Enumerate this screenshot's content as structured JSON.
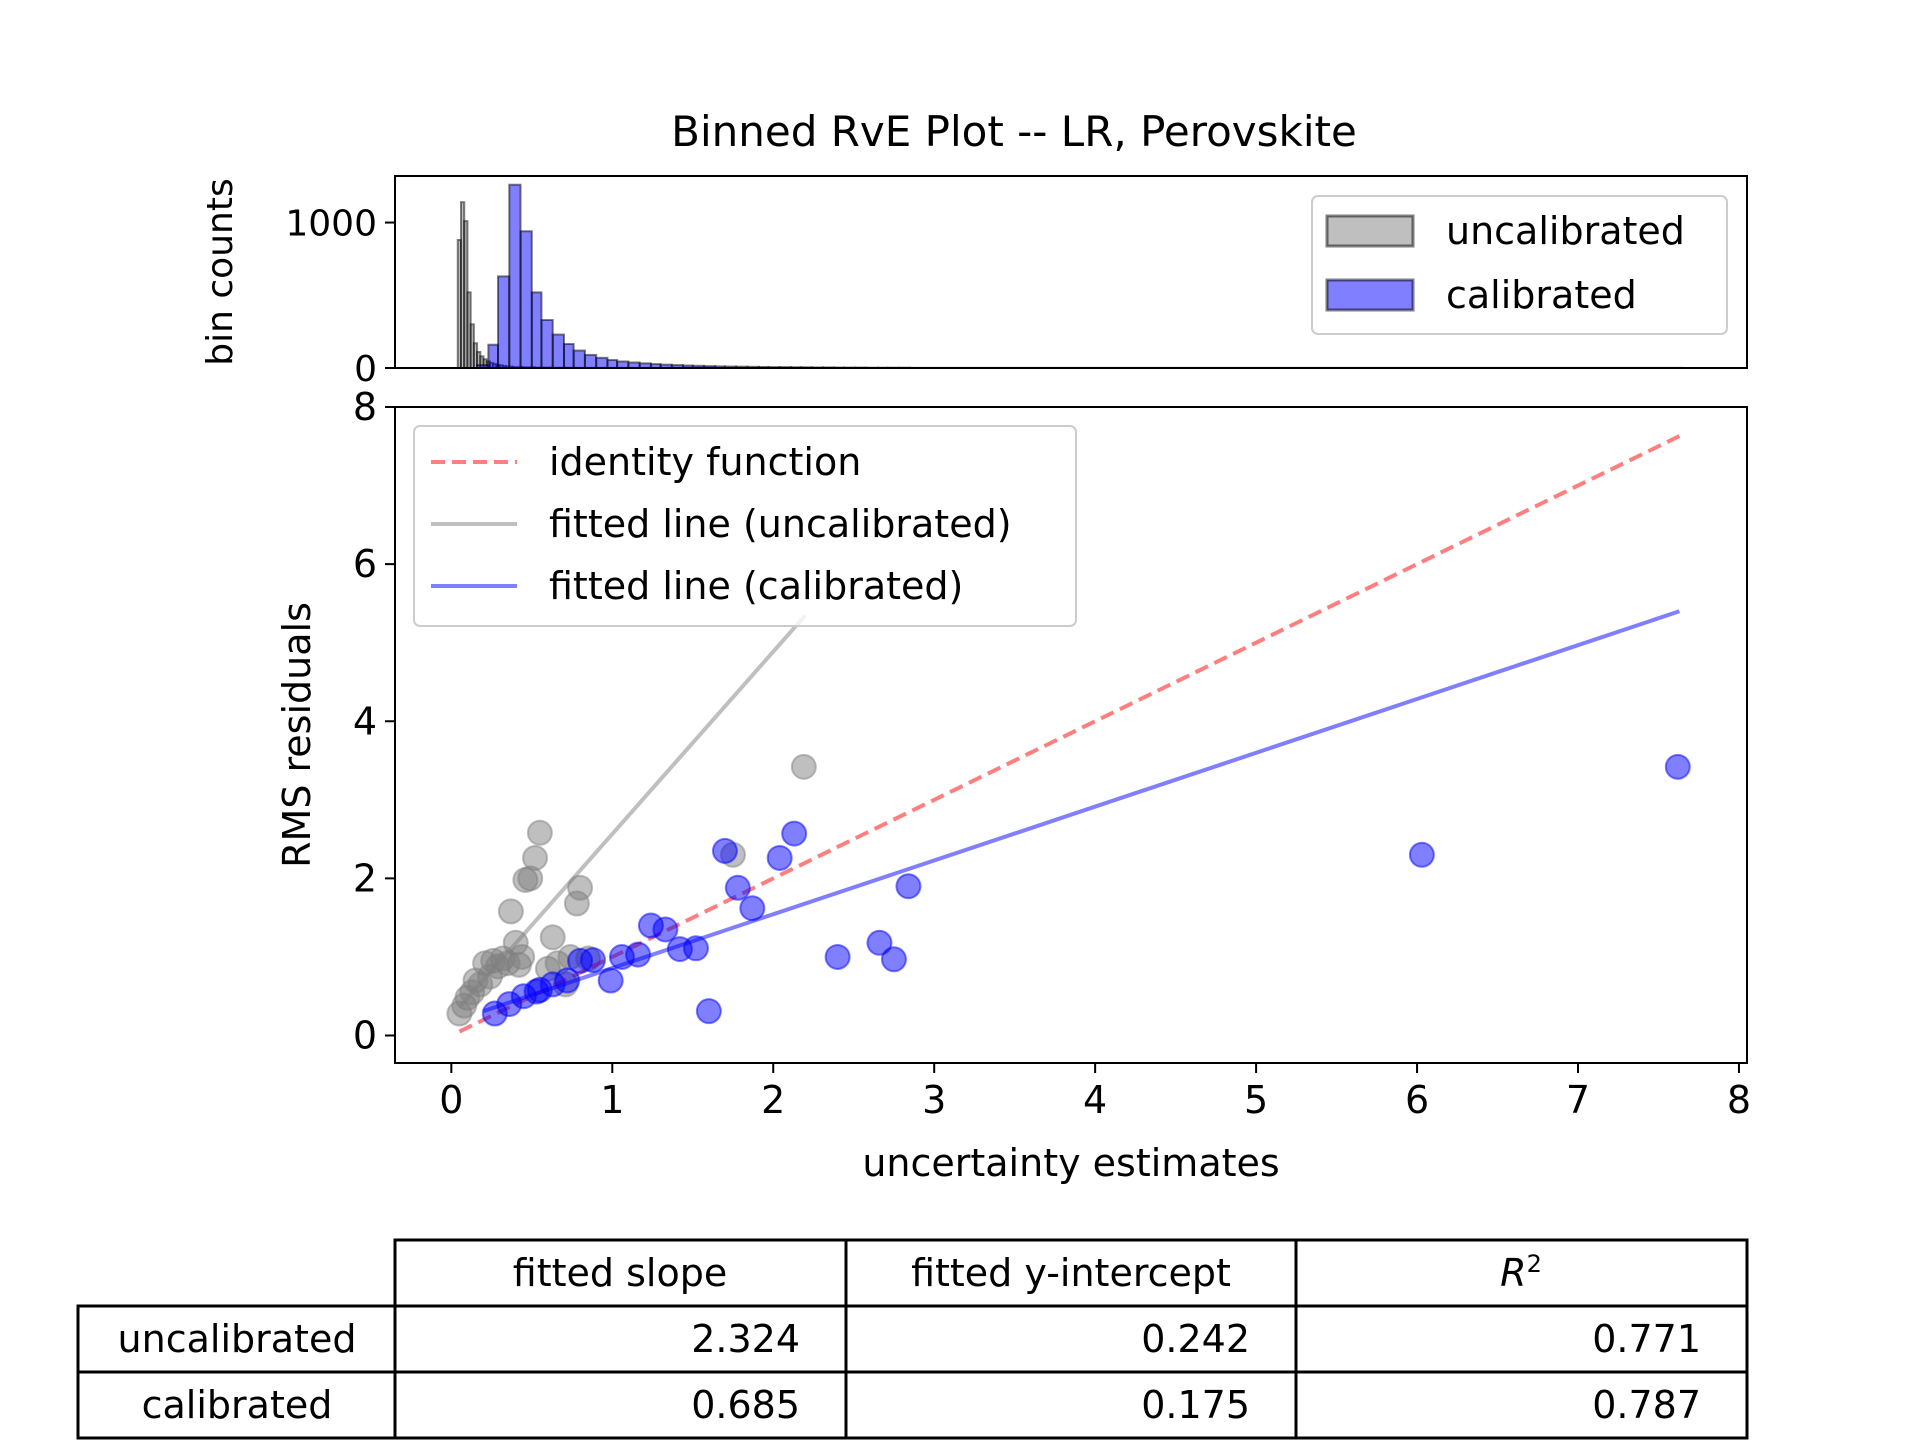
{
  "title": "Binned RvE Plot -- LR, Perovskite",
  "chart_data": [
    {
      "type": "histogram",
      "name": "bin-counts-panel",
      "ylabel": "bin counts",
      "yticks": [
        0,
        1000
      ],
      "ylim": [
        0,
        1320
      ],
      "xlim": [
        -0.35,
        8.05
      ],
      "legend_position": "top-right",
      "legend": [
        {
          "label": "uncalibrated",
          "color": "#808080"
        },
        {
          "label": "calibrated",
          "color": "#0000ff"
        }
      ],
      "series": [
        {
          "name": "uncalibrated",
          "color": "#808080",
          "bins": [
            {
              "x0": 0.04,
              "x1": 0.06,
              "count": 880
            },
            {
              "x0": 0.06,
              "x1": 0.08,
              "count": 1140
            },
            {
              "x0": 0.08,
              "x1": 0.1,
              "count": 1010
            },
            {
              "x0": 0.1,
              "x1": 0.12,
              "count": 520
            },
            {
              "x0": 0.12,
              "x1": 0.14,
              "count": 300
            },
            {
              "x0": 0.14,
              "x1": 0.16,
              "count": 170
            },
            {
              "x0": 0.16,
              "x1": 0.18,
              "count": 110
            },
            {
              "x0": 0.18,
              "x1": 0.2,
              "count": 80
            },
            {
              "x0": 0.2,
              "x1": 0.22,
              "count": 60
            },
            {
              "x0": 0.22,
              "x1": 0.24,
              "count": 45
            },
            {
              "x0": 0.24,
              "x1": 0.26,
              "count": 35
            },
            {
              "x0": 0.26,
              "x1": 0.28,
              "count": 28
            },
            {
              "x0": 0.28,
              "x1": 0.3,
              "count": 22
            },
            {
              "x0": 0.3,
              "x1": 0.32,
              "count": 18
            },
            {
              "x0": 0.32,
              "x1": 0.34,
              "count": 14
            },
            {
              "x0": 0.34,
              "x1": 0.38,
              "count": 10
            },
            {
              "x0": 0.38,
              "x1": 0.44,
              "count": 7
            },
            {
              "x0": 0.44,
              "x1": 0.52,
              "count": 5
            },
            {
              "x0": 0.52,
              "x1": 0.62,
              "count": 3
            },
            {
              "x0": 0.62,
              "x1": 0.76,
              "count": 2
            },
            {
              "x0": 0.76,
              "x1": 0.95,
              "count": 1
            },
            {
              "x0": 0.95,
              "x1": 2.2,
              "count": 1
            }
          ]
        },
        {
          "name": "calibrated",
          "color": "#0000ff",
          "bins": [
            {
              "x0": 0.16,
              "x1": 0.23,
              "count": 20
            },
            {
              "x0": 0.23,
              "x1": 0.29,
              "count": 160
            },
            {
              "x0": 0.29,
              "x1": 0.36,
              "count": 630
            },
            {
              "x0": 0.36,
              "x1": 0.43,
              "count": 1260
            },
            {
              "x0": 0.43,
              "x1": 0.5,
              "count": 940
            },
            {
              "x0": 0.5,
              "x1": 0.56,
              "count": 520
            },
            {
              "x0": 0.56,
              "x1": 0.63,
              "count": 330
            },
            {
              "x0": 0.63,
              "x1": 0.7,
              "count": 230
            },
            {
              "x0": 0.7,
              "x1": 0.76,
              "count": 165
            },
            {
              "x0": 0.76,
              "x1": 0.83,
              "count": 120
            },
            {
              "x0": 0.83,
              "x1": 0.9,
              "count": 90
            },
            {
              "x0": 0.9,
              "x1": 0.97,
              "count": 70
            },
            {
              "x0": 0.97,
              "x1": 1.03,
              "count": 55
            },
            {
              "x0": 1.03,
              "x1": 1.1,
              "count": 45
            },
            {
              "x0": 1.1,
              "x1": 1.17,
              "count": 38
            },
            {
              "x0": 1.17,
              "x1": 1.24,
              "count": 32
            },
            {
              "x0": 1.24,
              "x1": 1.3,
              "count": 27
            },
            {
              "x0": 1.3,
              "x1": 1.37,
              "count": 23
            },
            {
              "x0": 1.37,
              "x1": 1.44,
              "count": 20
            },
            {
              "x0": 1.44,
              "x1": 1.5,
              "count": 17
            },
            {
              "x0": 1.5,
              "x1": 1.57,
              "count": 15
            },
            {
              "x0": 1.57,
              "x1": 1.64,
              "count": 13
            },
            {
              "x0": 1.64,
              "x1": 1.7,
              "count": 11
            },
            {
              "x0": 1.7,
              "x1": 1.77,
              "count": 10
            },
            {
              "x0": 1.77,
              "x1": 1.84,
              "count": 9
            },
            {
              "x0": 1.84,
              "x1": 1.91,
              "count": 8
            },
            {
              "x0": 1.91,
              "x1": 1.97,
              "count": 7
            },
            {
              "x0": 1.97,
              "x1": 2.04,
              "count": 6
            },
            {
              "x0": 2.04,
              "x1": 2.11,
              "count": 6
            },
            {
              "x0": 2.11,
              "x1": 2.17,
              "count": 5
            },
            {
              "x0": 2.17,
              "x1": 2.24,
              "count": 5
            },
            {
              "x0": 2.24,
              "x1": 2.31,
              "count": 4
            },
            {
              "x0": 2.31,
              "x1": 2.38,
              "count": 4
            },
            {
              "x0": 2.38,
              "x1": 2.44,
              "count": 3
            },
            {
              "x0": 2.44,
              "x1": 2.51,
              "count": 3
            },
            {
              "x0": 2.51,
              "x1": 2.58,
              "count": 3
            },
            {
              "x0": 2.58,
              "x1": 2.65,
              "count": 2
            },
            {
              "x0": 2.65,
              "x1": 2.71,
              "count": 2
            },
            {
              "x0": 2.71,
              "x1": 2.78,
              "count": 2
            },
            {
              "x0": 2.78,
              "x1": 2.85,
              "count": 2
            },
            {
              "x0": 2.85,
              "x1": 7.65,
              "count": 1
            }
          ]
        }
      ]
    },
    {
      "type": "scatter",
      "name": "rve-scatter-panel",
      "xlabel": "uncertainty estimates",
      "ylabel": "RMS residuals",
      "xlim": [
        -0.35,
        8.05
      ],
      "ylim": [
        -0.35,
        8.0
      ],
      "xticks": [
        0,
        1,
        2,
        3,
        4,
        5,
        6,
        7,
        8
      ],
      "yticks": [
        0,
        2,
        4,
        6,
        8
      ],
      "legend_position": "top-left",
      "legend": [
        {
          "label": "identity function",
          "color": "#ff0000",
          "style": "dashed"
        },
        {
          "label": "fitted line (uncalibrated)",
          "color": "#808080",
          "style": "solid"
        },
        {
          "label": "fitted line (calibrated)",
          "color": "#0000ff",
          "style": "solid"
        }
      ],
      "lines": [
        {
          "name": "identity function",
          "color": "#ff0000",
          "dashed": true,
          "x": [
            0.05,
            7.63
          ],
          "y": [
            0.05,
            7.63
          ]
        },
        {
          "name": "fitted line (uncalibrated)",
          "color": "#808080",
          "dashed": false,
          "x": [
            0.05,
            2.2
          ],
          "y": [
            0.36,
            5.35
          ]
        },
        {
          "name": "fitted line (calibrated)",
          "color": "#0000ff",
          "dashed": false,
          "x": [
            0.2,
            7.63
          ],
          "y": [
            0.31,
            5.4
          ]
        }
      ],
      "series": [
        {
          "name": "uncalibrated",
          "color": "#808080",
          "points": [
            [
              0.05,
              0.28
            ],
            [
              0.08,
              0.38
            ],
            [
              0.1,
              0.48
            ],
            [
              0.13,
              0.55
            ],
            [
              0.15,
              0.7
            ],
            [
              0.18,
              0.65
            ],
            [
              0.21,
              0.92
            ],
            [
              0.24,
              0.75
            ],
            [
              0.26,
              0.95
            ],
            [
              0.29,
              0.88
            ],
            [
              0.32,
              0.98
            ],
            [
              0.35,
              0.92
            ],
            [
              0.37,
              1.58
            ],
            [
              0.4,
              1.18
            ],
            [
              0.42,
              0.9
            ],
            [
              0.44,
              1.0
            ],
            [
              0.46,
              1.98
            ],
            [
              0.49,
              2.0
            ],
            [
              0.52,
              2.26
            ],
            [
              0.55,
              2.58
            ],
            [
              0.6,
              0.85
            ],
            [
              0.63,
              1.25
            ],
            [
              0.66,
              0.92
            ],
            [
              0.71,
              0.65
            ],
            [
              0.74,
              1.0
            ],
            [
              0.78,
              1.68
            ],
            [
              0.8,
              1.88
            ],
            [
              0.85,
              0.98
            ],
            [
              1.75,
              2.3
            ],
            [
              2.19,
              3.42
            ]
          ]
        },
        {
          "name": "calibrated",
          "color": "#0000ff",
          "points": [
            [
              0.27,
              0.28
            ],
            [
              0.36,
              0.4
            ],
            [
              0.45,
              0.5
            ],
            [
              0.53,
              0.56
            ],
            [
              0.55,
              0.58
            ],
            [
              0.63,
              0.65
            ],
            [
              0.72,
              0.7
            ],
            [
              0.8,
              0.95
            ],
            [
              0.88,
              0.96
            ],
            [
              0.99,
              0.7
            ],
            [
              1.06,
              1.0
            ],
            [
              1.16,
              1.03
            ],
            [
              1.24,
              1.4
            ],
            [
              1.33,
              1.35
            ],
            [
              1.42,
              1.1
            ],
            [
              1.52,
              1.11
            ],
            [
              1.6,
              0.31
            ],
            [
              1.7,
              2.35
            ],
            [
              1.78,
              1.88
            ],
            [
              1.87,
              1.62
            ],
            [
              2.04,
              2.26
            ],
            [
              2.13,
              2.57
            ],
            [
              2.4,
              1.0
            ],
            [
              2.66,
              1.18
            ],
            [
              2.75,
              0.97
            ],
            [
              2.84,
              1.9
            ],
            [
              6.03,
              2.3
            ],
            [
              7.62,
              3.42
            ]
          ]
        }
      ]
    }
  ],
  "table": {
    "columns": [
      "fitted slope",
      "fitted y-intercept",
      "R"
    ],
    "r2_superscript": "2",
    "rows": [
      {
        "label": "uncalibrated",
        "values": [
          "2.324",
          "0.242",
          "0.771"
        ]
      },
      {
        "label": "calibrated",
        "values": [
          "0.685",
          "0.175",
          "0.787"
        ]
      }
    ]
  }
}
